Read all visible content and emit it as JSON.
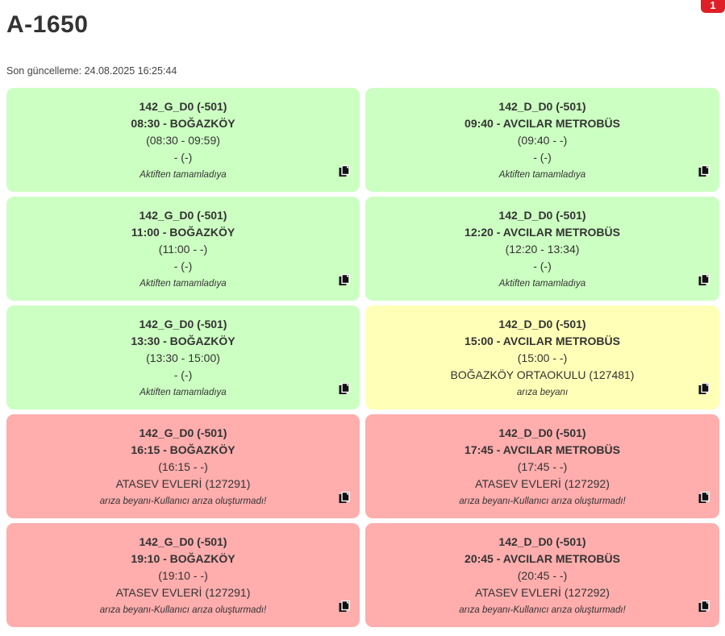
{
  "header": {
    "title": "A-1650",
    "updated_label": "Son güncelleme: 24.08.2025 16:25:44",
    "badge": "1"
  },
  "cards": [
    {
      "status": "green",
      "route": "142_G_D0 (-501)",
      "departure": "08:30 - BOĞAZKÖY",
      "times": "(08:30 - 09:59)",
      "stop": "- (-)",
      "note": "Aktiften tamamladıya",
      "icon": "copy-icon"
    },
    {
      "status": "green",
      "route": "142_D_D0 (-501)",
      "departure": "09:40 - AVCILAR METROBÜS",
      "times": "(09:40 - -)",
      "stop": "- (-)",
      "note": "Aktiften tamamladıya",
      "icon": "copy-icon"
    },
    {
      "status": "green",
      "route": "142_G_D0 (-501)",
      "departure": "11:00 - BOĞAZKÖY",
      "times": "(11:00 - -)",
      "stop": "- (-)",
      "note": "Aktiften tamamladıya",
      "icon": "copy-icon"
    },
    {
      "status": "green",
      "route": "142_D_D0 (-501)",
      "departure": "12:20 - AVCILAR METROBÜS",
      "times": "(12:20 - 13:34)",
      "stop": "- (-)",
      "note": "Aktiften tamamladıya",
      "icon": "copy-icon"
    },
    {
      "status": "green",
      "route": "142_G_D0 (-501)",
      "departure": "13:30 - BOĞAZKÖY",
      "times": "(13:30 - 15:00)",
      "stop": "- (-)",
      "note": "Aktiften tamamladıya",
      "icon": "copy-icon"
    },
    {
      "status": "yellow",
      "route": "142_D_D0 (-501)",
      "departure": "15:00 - AVCILAR METROBÜS",
      "times": "(15:00 - -)",
      "stop": "BOĞAZKÖY ORTAOKULU (127481)",
      "note": "arıza beyanı",
      "icon": "copy-icon"
    },
    {
      "status": "red",
      "route": "142_G_D0 (-501)",
      "departure": "16:15 - BOĞAZKÖY",
      "times": "(16:15 - -)",
      "stop": "ATASEV EVLERİ (127291)",
      "note": "arıza beyanı-Kullanıcı arıza oluşturmadı!",
      "icon": "copy-icon"
    },
    {
      "status": "red",
      "route": "142_D_D0 (-501)",
      "departure": "17:45 - AVCILAR METROBÜS",
      "times": "(17:45 - -)",
      "stop": "ATASEV EVLERİ (127292)",
      "note": "arıza beyanı-Kullanıcı arıza oluşturmadı!",
      "icon": "copy-icon"
    },
    {
      "status": "red",
      "route": "142_G_D0 (-501)",
      "departure": "19:10 - BOĞAZKÖY",
      "times": "(19:10 - -)",
      "stop": "ATASEV EVLERİ (127291)",
      "note": "arıza beyanı-Kullanıcı arıza oluşturmadı!",
      "icon": "copy-icon"
    },
    {
      "status": "red",
      "route": "142_D_D0 (-501)",
      "departure": "20:45 - AVCILAR METROBÜS",
      "times": "(20:45 - -)",
      "stop": "ATASEV EVLERİ (127292)",
      "note": "arıza beyanı-Kullanıcı arıza oluşturmadı!",
      "icon": "copy-icon"
    }
  ],
  "colors": {
    "green": "#ccffc2",
    "yellow": "#ffffb7",
    "red": "#ffadad",
    "badge": "#e01e25"
  }
}
